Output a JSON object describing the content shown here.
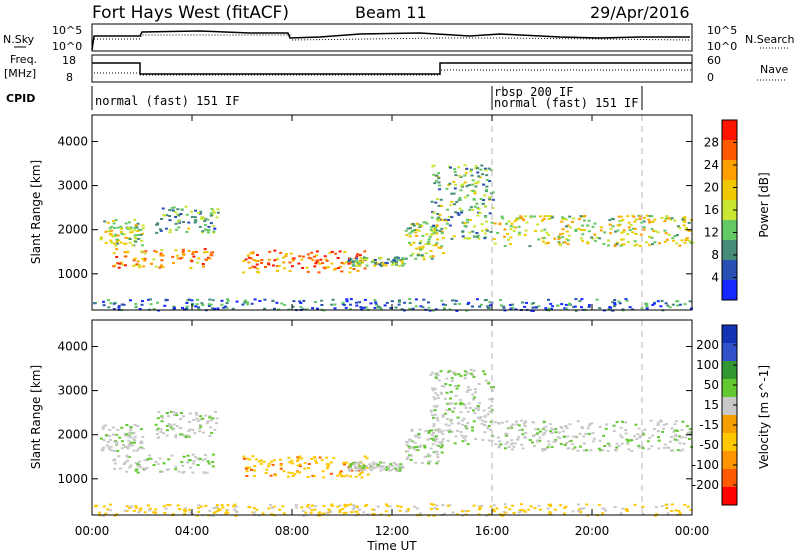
{
  "header": {
    "station": "Fort Hays West (fitACF)",
    "beam": "Beam 11",
    "date": "29/Apr/2016"
  },
  "panels": {
    "noise": {
      "left_label": "N.Sky",
      "right_label": "N.Search",
      "left_ticks": [
        "10^5",
        "10^0"
      ],
      "right_ticks": [
        "10^5",
        "10^0"
      ]
    },
    "freq": {
      "left_label": "Freq.",
      "left_unit": "[MHz]",
      "right_label": "Nave",
      "left_ticks": [
        "18",
        "8"
      ],
      "right_ticks": [
        "60",
        "0"
      ]
    },
    "cpid": {
      "label": "CPID",
      "segments": [
        {
          "start": "00:00",
          "end": "16:00",
          "text": "normal (fast) 151 IF"
        },
        {
          "start": "16:00",
          "end": "22:00",
          "text": "rbsp 200 IF"
        },
        {
          "start": "16:00",
          "end": "22:00",
          "text": "normal (fast) 151 IF"
        }
      ]
    }
  },
  "chart_data": [
    {
      "type": "heatmap",
      "title": "Power",
      "ylabel": "Slant Range [km]",
      "yticks": [
        "1000",
        "2000",
        "3000",
        "4000"
      ],
      "ylim": [
        180,
        4600
      ],
      "xlim": [
        "00:00",
        "24:00"
      ],
      "colorbar": {
        "label": "Power [dB]",
        "ticks": [
          "4",
          "8",
          "12",
          "16",
          "20",
          "24",
          "28"
        ],
        "range": [
          0,
          30
        ],
        "colors": [
          "#1428ff",
          "#2850b4",
          "#468c78",
          "#64c864",
          "#c8e632",
          "#f0c800",
          "#ffa000",
          "#ff5a00",
          "#ff1400"
        ]
      },
      "echo_regions": [
        {
          "t0": 0.3,
          "t1": 2.0,
          "r0": 1650,
          "r1": 2250,
          "level": 14
        },
        {
          "t0": 0.8,
          "t1": 4.8,
          "r0": 1150,
          "r1": 1600,
          "level": 22
        },
        {
          "t0": 2.5,
          "t1": 5.0,
          "r0": 1950,
          "r1": 2550,
          "level": 10
        },
        {
          "t0": 6.0,
          "t1": 11.0,
          "r0": 1050,
          "r1": 1550,
          "level": 24
        },
        {
          "t0": 10.2,
          "t1": 12.5,
          "r0": 1200,
          "r1": 1400,
          "level": 12
        },
        {
          "t0": 12.5,
          "t1": 14.0,
          "r0": 1350,
          "r1": 2200,
          "level": 14
        },
        {
          "t0": 13.5,
          "t1": 16.0,
          "r0": 1800,
          "r1": 3500,
          "level": 12
        },
        {
          "t0": 16.0,
          "t1": 24.0,
          "r0": 1650,
          "r1": 2350,
          "level": 16
        },
        {
          "t0": 0.0,
          "t1": 24.0,
          "r0": 180,
          "r1": 450,
          "level": 6
        }
      ]
    },
    {
      "type": "heatmap",
      "title": "Velocity",
      "ylabel": "Slant Range [km]",
      "xlabel": "Time UT",
      "yticks": [
        "1000",
        "2000",
        "3000",
        "4000"
      ],
      "xticks": [
        "00:00",
        "04:00",
        "08:00",
        "12:00",
        "16:00",
        "20:00",
        "00:00"
      ],
      "ylim": [
        180,
        4600
      ],
      "xlim": [
        "00:00",
        "24:00"
      ],
      "colorbar": {
        "label": "Velocity [m s^-1]",
        "ticks": [
          "-200",
          "-100",
          "-50",
          "-15",
          "15",
          "50",
          "100",
          "200"
        ],
        "colors": [
          "#ff0000",
          "#ff5a00",
          "#ff9600",
          "#ffc800",
          "#f5a000",
          "#c8c8c8",
          "#64c832",
          "#329632",
          "#3250c8",
          "#1432b4"
        ]
      },
      "echo_regions": [
        {
          "t0": 0.3,
          "t1": 2.0,
          "r0": 1650,
          "r1": 2250,
          "v": 0
        },
        {
          "t0": 0.8,
          "t1": 4.8,
          "r0": 1150,
          "r1": 1600,
          "v": 0
        },
        {
          "t0": 2.5,
          "t1": 5.0,
          "r0": 1950,
          "r1": 2550,
          "v": 10
        },
        {
          "t0": 6.0,
          "t1": 11.0,
          "r0": 1050,
          "r1": 1550,
          "v": -60
        },
        {
          "t0": 10.2,
          "t1": 12.5,
          "r0": 1200,
          "r1": 1400,
          "v": 0
        },
        {
          "t0": 12.5,
          "t1": 14.0,
          "r0": 1350,
          "r1": 2200,
          "v": 0
        },
        {
          "t0": 13.5,
          "t1": 16.0,
          "r0": 1800,
          "r1": 3500,
          "v": 0
        },
        {
          "t0": 16.0,
          "t1": 24.0,
          "r0": 1650,
          "r1": 2350,
          "v": 0
        },
        {
          "t0": 0.0,
          "t1": 24.0,
          "r0": 180,
          "r1": 450,
          "v": -40
        }
      ]
    }
  ]
}
